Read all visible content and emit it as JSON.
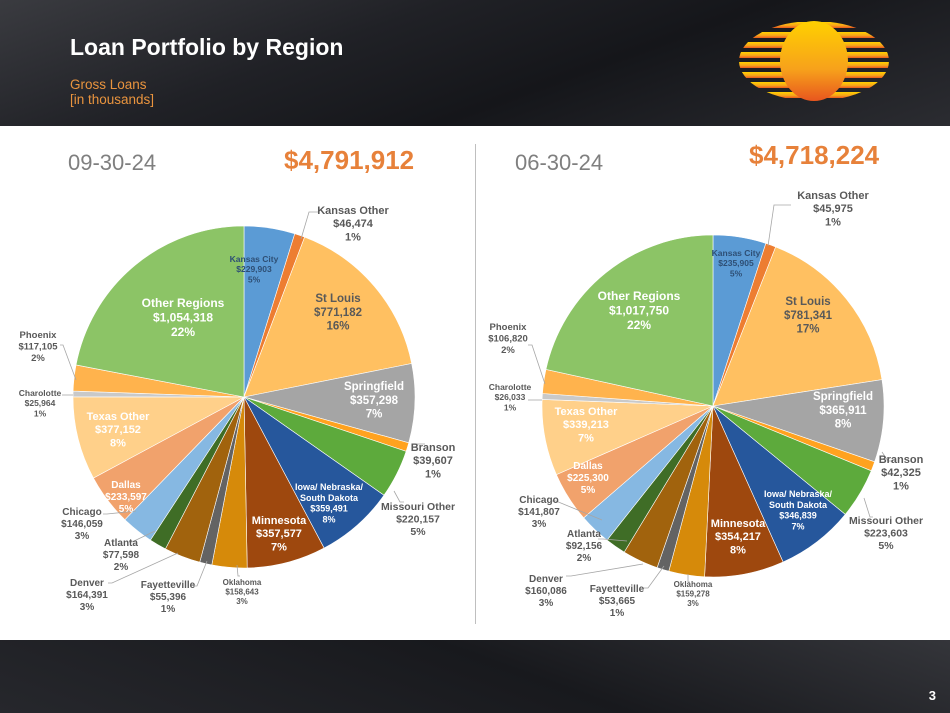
{
  "header": {
    "title": "Loan Portfolio by Region",
    "subtitle_line1": "Gross Loans",
    "subtitle_line2": "[in thousands]"
  },
  "page_number": "3",
  "colors": {
    "accent": "#e7813a",
    "subtitle": "#e9943e"
  },
  "chart_data": [
    {
      "type": "pie",
      "date": "09-30-24",
      "total": "$4,791,912",
      "slices": [
        {
          "name": "Kansas City",
          "value": 229903,
          "value_label": "$229,903",
          "pct": "5%",
          "color": "#5b9bd5"
        },
        {
          "name": "Kansas Other",
          "value": 46474,
          "value_label": "$46,474",
          "pct": "1%",
          "color": "#ed7d31"
        },
        {
          "name": "St Louis",
          "value": 771182,
          "value_label": "$771,182",
          "pct": "16%",
          "color": "#ffc061"
        },
        {
          "name": "Springfield",
          "value": 357298,
          "value_label": "$357,298",
          "pct": "7%",
          "color": "#a5a5a5"
        },
        {
          "name": "Branson",
          "value": 39607,
          "value_label": "$39,607",
          "pct": "1%",
          "color": "#ffa21f"
        },
        {
          "name": "Missouri Other",
          "value": 220157,
          "value_label": "$220,157",
          "pct": "5%",
          "color": "#5daa3c"
        },
        {
          "name": "Iowa/ Nebraska/ South Dakota",
          "value": 359491,
          "value_label": "$359,491",
          "pct": "8%",
          "color": "#26579c"
        },
        {
          "name": "Minnesota",
          "value": 357577,
          "value_label": "$357,577",
          "pct": "7%",
          "color": "#9e480e"
        },
        {
          "name": "Oklahoma",
          "value": 158643,
          "value_label": "$158,643",
          "pct": "3%",
          "color": "#d68a0a"
        },
        {
          "name": "Fayetteville",
          "value": 55396,
          "value_label": "$55,396",
          "pct": "1%",
          "color": "#636363"
        },
        {
          "name": "Denver",
          "value": 164391,
          "value_label": "$164,391",
          "pct": "3%",
          "color": "#a1630d"
        },
        {
          "name": "Atlanta",
          "value": 77598,
          "value_label": "$77,598",
          "pct": "2%",
          "color": "#3f6d26"
        },
        {
          "name": "Chicago",
          "value": 146059,
          "value_label": "$146,059",
          "pct": "3%",
          "color": "#86b8e2"
        },
        {
          "name": "Dallas",
          "value": 233597,
          "value_label": "$233,597",
          "pct": "5%",
          "color": "#f1a26c"
        },
        {
          "name": "Texas Other",
          "value": 377152,
          "value_label": "$377,152",
          "pct": "8%",
          "color": "#ffd08a"
        },
        {
          "name": "Charolotte",
          "value": 25964,
          "value_label": "$25,964",
          "pct": "1%",
          "color": "#c9c9c9"
        },
        {
          "name": "Phoenix",
          "value": 117105,
          "value_label": "$117,105",
          "pct": "2%",
          "color": "#ffb34d"
        },
        {
          "name": "Other Regions",
          "value": 1054318,
          "value_label": "$1,054,318",
          "pct": "22%",
          "color": "#8cc466"
        }
      ]
    },
    {
      "type": "pie",
      "date": "06-30-24",
      "total": "$4,718,224",
      "slices": [
        {
          "name": "Kansas City",
          "value": 235905,
          "value_label": "$235,905",
          "pct": "5%",
          "color": "#5b9bd5"
        },
        {
          "name": "Kansas Other",
          "value": 45975,
          "value_label": "$45,975",
          "pct": "1%",
          "color": "#ed7d31"
        },
        {
          "name": "St Louis",
          "value": 781341,
          "value_label": "$781,341",
          "pct": "17%",
          "color": "#ffc061"
        },
        {
          "name": "Springfield",
          "value": 365911,
          "value_label": "$365,911",
          "pct": "8%",
          "color": "#a5a5a5"
        },
        {
          "name": "Branson",
          "value": 42325,
          "value_label": "$42,325",
          "pct": "1%",
          "color": "#ffa21f"
        },
        {
          "name": "Missouri Other",
          "value": 223603,
          "value_label": "$223,603",
          "pct": "5%",
          "color": "#5daa3c"
        },
        {
          "name": "Iowa/ Nebraska/ South Dakota",
          "value": 346839,
          "value_label": "$346,839",
          "pct": "7%",
          "color": "#26579c"
        },
        {
          "name": "Minnesota",
          "value": 354217,
          "value_label": "$354,217",
          "pct": "8%",
          "color": "#9e480e"
        },
        {
          "name": "Oklahoma",
          "value": 159278,
          "value_label": "$159,278",
          "pct": "3%",
          "color": "#d68a0a"
        },
        {
          "name": "Fayetteville",
          "value": 53665,
          "value_label": "$53,665",
          "pct": "1%",
          "color": "#636363"
        },
        {
          "name": "Denver",
          "value": 160086,
          "value_label": "$160,086",
          "pct": "3%",
          "color": "#a1630d"
        },
        {
          "name": "Atlanta",
          "value": 92156,
          "value_label": "$92,156",
          "pct": "2%",
          "color": "#3f6d26"
        },
        {
          "name": "Chicago",
          "value": 141807,
          "value_label": "$141,807",
          "pct": "3%",
          "color": "#86b8e2"
        },
        {
          "name": "Dallas",
          "value": 225300,
          "value_label": "$225,300",
          "pct": "5%",
          "color": "#f1a26c"
        },
        {
          "name": "Texas Other",
          "value": 339213,
          "value_label": "$339,213",
          "pct": "7%",
          "color": "#ffd08a"
        },
        {
          "name": "Charolotte",
          "value": 26033,
          "value_label": "$26,033",
          "pct": "1%",
          "color": "#c9c9c9"
        },
        {
          "name": "Phoenix",
          "value": 106820,
          "value_label": "$106,820",
          "pct": "2%",
          "color": "#ffb34d"
        },
        {
          "name": "Other Regions",
          "value": 1017750,
          "value_label": "$1,017,750",
          "pct": "22%",
          "color": "#8cc466"
        }
      ]
    }
  ]
}
